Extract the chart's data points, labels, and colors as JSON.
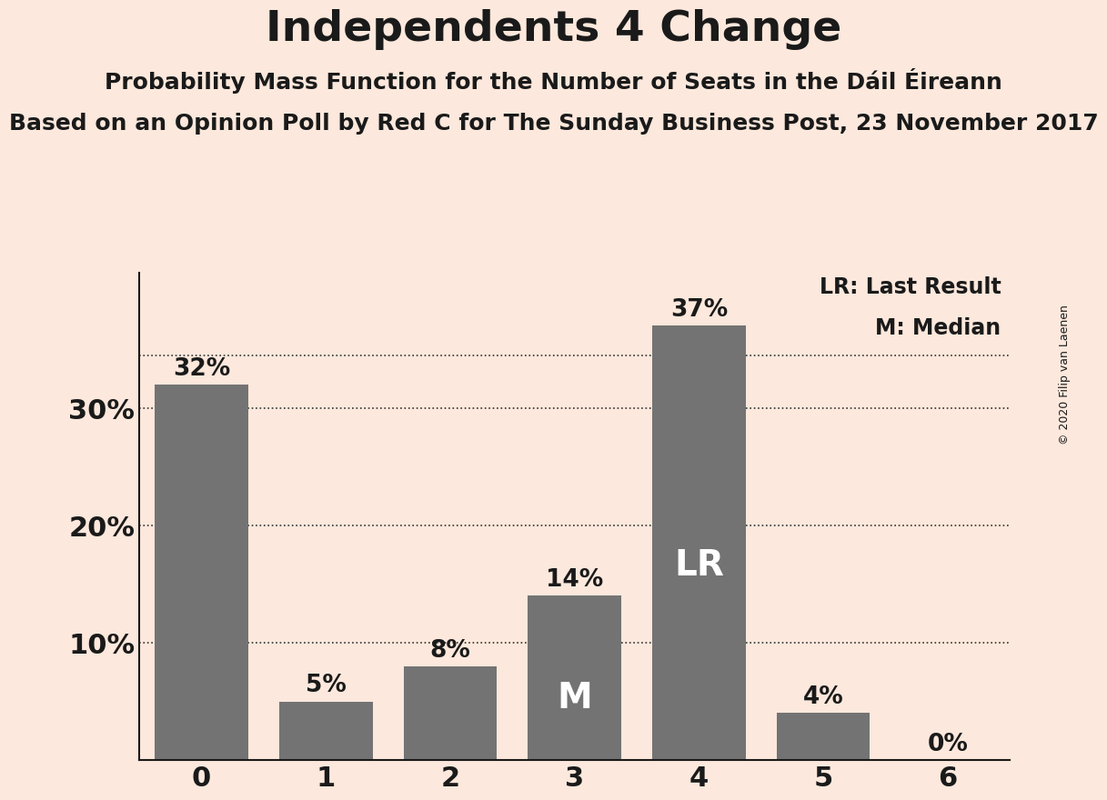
{
  "title": "Independents 4 Change",
  "subtitle1": "Probability Mass Function for the Number of Seats in the Dáil Éireann",
  "subtitle2": "Based on an Opinion Poll by Red C for The Sunday Business Post, 23 November 2017",
  "copyright": "© 2020 Filip van Laenen",
  "categories": [
    0,
    1,
    2,
    3,
    4,
    5,
    6
  ],
  "values": [
    0.32,
    0.05,
    0.08,
    0.14,
    0.37,
    0.04,
    0.0
  ],
  "bar_labels": [
    "32%",
    "5%",
    "8%",
    "14%",
    "37%",
    "4%",
    "0%"
  ],
  "bar_color": "#737373",
  "background_color": "#fce8dc",
  "text_color": "#1a1a1a",
  "ylim": [
    0,
    0.415
  ],
  "yticks": [
    0.0,
    0.1,
    0.2,
    0.3
  ],
  "ytick_labels": [
    "",
    "10%",
    "20%",
    "30%"
  ],
  "median_bar": 3,
  "lr_bar": 4,
  "median_label": "M",
  "lr_label": "LR",
  "legend_lr": "LR: Last Result",
  "legend_m": "M: Median",
  "dotted_line_value": 0.345,
  "bar_label_fontsize": 19,
  "title_fontsize": 34,
  "subtitle1_fontsize": 18,
  "subtitle2_fontsize": 18,
  "axis_tick_fontsize": 22,
  "inside_label_fontsize": 28,
  "legend_fontsize": 17,
  "copyright_fontsize": 9
}
